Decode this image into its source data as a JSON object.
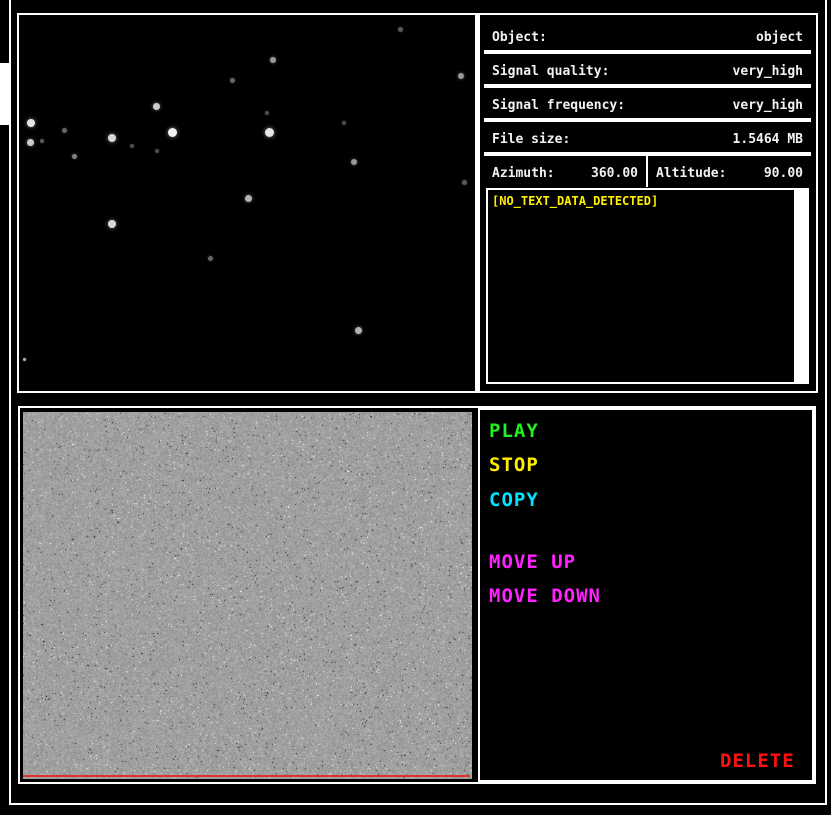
{
  "info": {
    "object_label": "Object:",
    "object_value": "object",
    "quality_label": "Signal quality:",
    "quality_value": "very_high",
    "frequency_label": "Signal frequency:",
    "frequency_value": "very_high",
    "filesize_label": "File size:",
    "filesize_value": "1.5464 MB",
    "azimuth_label": "Azimuth:",
    "azimuth_value": "360.00",
    "altitude_label": "Altitude:",
    "altitude_value": "90.00"
  },
  "text_output": "[NO_TEXT_DATA_DETECTED]",
  "buttons": {
    "play": {
      "label": "PLAY",
      "color": "#22ee22"
    },
    "stop": {
      "label": "STOP",
      "color": "#ffee00"
    },
    "copy": {
      "label": "COPY",
      "color": "#00e5ff"
    },
    "move_up": {
      "label": "MOVE UP",
      "color": "#ff22ff"
    },
    "move_down": {
      "label": "MOVE DOWN",
      "color": "#ff22ff"
    },
    "delete": {
      "label": "DELETE",
      "color": "#ff1111"
    }
  }
}
